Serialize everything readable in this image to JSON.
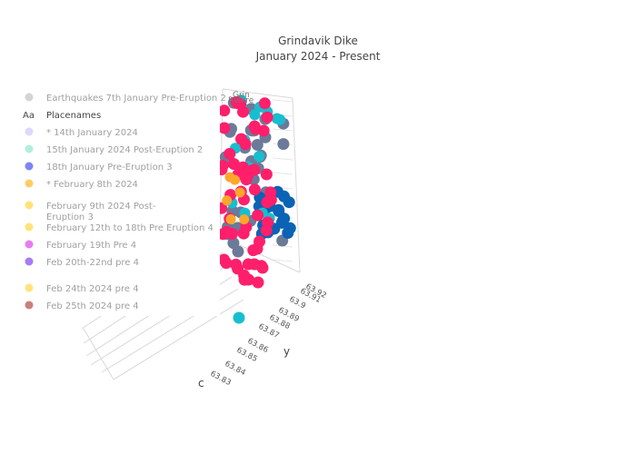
{
  "chart_data": {
    "type": "scatter",
    "title_lines": [
      "Grindavik Dike",
      "January 2024 - Present"
    ],
    "axis_y_title": "y",
    "axis_z_partial_title": "c",
    "y_ticks": [
      "63.83",
      "63.84",
      "63.85",
      "63.86",
      "63.87",
      "63.88",
      "63.89",
      "63.9",
      "63.91",
      "63.92"
    ],
    "overlay_text": [
      "Grin",
      "Rvíkre"
    ],
    "legend": [
      {
        "name": "Earthquakes 7th January Pre-Eruption 2",
        "color": "#d4d4d4",
        "symbol": "circle",
        "active": false
      },
      {
        "name": "Placenames",
        "color": "#444444",
        "symbol": "text",
        "active": true
      },
      {
        "name": "* 14th January 2024",
        "color": "#dcd8ff",
        "symbol": "circle",
        "active": false
      },
      {
        "name": "15th January 2024 Post-Eruption 2",
        "color": "#b3eedd",
        "symbol": "circle",
        "active": false
      },
      {
        "name": "18th January Pre-Eruption 3",
        "color": "#7d86f2",
        "symbol": "circle",
        "active": false
      },
      {
        "name": "* February 8th 2024",
        "color": "#ffcc66",
        "symbol": "circle",
        "active": false
      },
      {
        "name": "February 9th 2024 Post-\nEruption 3",
        "color": "#ffe37a",
        "symbol": "circle",
        "active": false
      },
      {
        "name": "February 12th to 18th Pre Eruption 4",
        "color": "#ffe37a",
        "symbol": "circle",
        "active": false
      },
      {
        "name": "February 19th Pre 4",
        "color": "#e57cf0",
        "symbol": "circle",
        "active": false
      },
      {
        "name": "Feb 20th-22nd pre 4",
        "color": "#a77bf5",
        "symbol": "circle",
        "active": false
      },
      {
        "name": "Feb 24th 2024 pre 4",
        "color": "#ffe37a",
        "symbol": "circle",
        "active": false
      },
      {
        "name": "Feb 25th 2024 pre 4",
        "color": "#c8807a",
        "symbol": "circle",
        "active": false
      }
    ]
  }
}
